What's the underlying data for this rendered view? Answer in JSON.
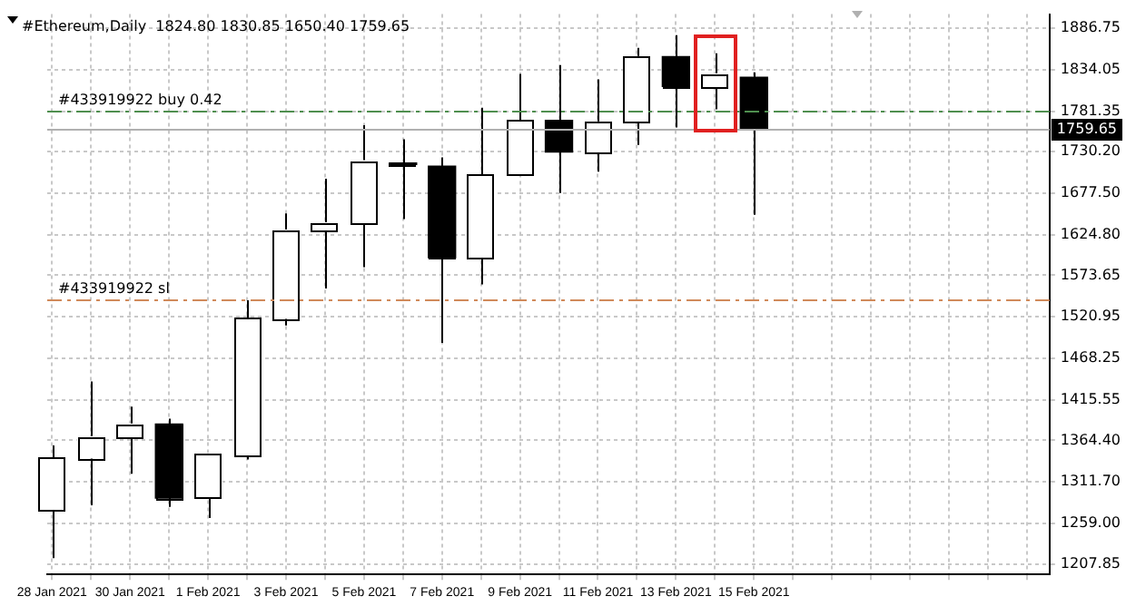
{
  "chart_data": {
    "type": "candlestick",
    "title": "#Ethereum,Daily  1824.80 1830.85 1650.40 1759.65",
    "x": [
      "2021-01-28",
      "2021-01-29",
      "2021-01-30",
      "2021-01-31",
      "2021-02-01",
      "2021-02-02",
      "2021-02-03",
      "2021-02-04",
      "2021-02-05",
      "2021-02-06",
      "2021-02-07",
      "2021-02-08",
      "2021-02-09",
      "2021-02-10",
      "2021-02-11",
      "2021-02-12",
      "2021-02-13",
      "2021-02-14",
      "2021-02-15"
    ],
    "ohlc": [
      [
        1275,
        1358,
        1215,
        1342
      ],
      [
        1342,
        1439,
        1282,
        1369
      ],
      [
        1369,
        1407,
        1322,
        1385
      ],
      [
        1385,
        1392,
        1280,
        1291
      ],
      [
        1291,
        1347,
        1266,
        1347
      ],
      [
        1345,
        1542,
        1340,
        1519
      ],
      [
        1519,
        1652,
        1510,
        1631
      ],
      [
        1631,
        1696,
        1557,
        1640
      ],
      [
        1640,
        1764,
        1584,
        1719
      ],
      [
        1716,
        1746,
        1645,
        1714
      ],
      [
        1712,
        1723,
        1488,
        1596
      ],
      [
        1596,
        1786,
        1562,
        1701
      ],
      [
        1701,
        1829,
        1701,
        1770
      ],
      [
        1770,
        1840,
        1678,
        1730
      ],
      [
        1730,
        1822,
        1705,
        1768
      ],
      [
        1768,
        1862,
        1739,
        1851
      ],
      [
        1851,
        1878,
        1761,
        1813
      ],
      [
        1813,
        1855,
        1784,
        1829
      ],
      [
        1824.8,
        1830.85,
        1650.4,
        1759.65
      ]
    ],
    "colors": [
      "#ffffff",
      "#ffffff",
      "#ffffff",
      "#000000",
      "#ffffff",
      "#ffffff",
      "#ffffff",
      "#ffffff",
      "#ffffff",
      "#000000",
      "#000000",
      "#ffffff",
      "#ffffff",
      "#000000",
      "#ffffff",
      "#ffffff",
      "#000000",
      "#ffffff",
      "#000000"
    ],
    "xlim": [
      "2021-01-27T21:00",
      "2021-02-22T14:00"
    ],
    "xticks": [
      {
        "value": "2021-01-28",
        "label": "28 Jan 2021"
      },
      {
        "value": "2021-01-29",
        "label": null
      },
      {
        "value": "2021-01-30",
        "label": "30 Jan 2021"
      },
      {
        "value": "2021-01-31",
        "label": null
      },
      {
        "value": "2021-02-01",
        "label": "1 Feb 2021"
      },
      {
        "value": "2021-02-02",
        "label": null
      },
      {
        "value": "2021-02-03",
        "label": "3 Feb 2021"
      },
      {
        "value": "2021-02-04",
        "label": null
      },
      {
        "value": "2021-02-05",
        "label": "5 Feb 2021"
      },
      {
        "value": "2021-02-06",
        "label": null
      },
      {
        "value": "2021-02-07",
        "label": "7 Feb 2021"
      },
      {
        "value": "2021-02-08",
        "label": null
      },
      {
        "value": "2021-02-09",
        "label": "9 Feb 2021"
      },
      {
        "value": "2021-02-10",
        "label": null
      },
      {
        "value": "2021-02-11",
        "label": "11 Feb 2021"
      },
      {
        "value": "2021-02-12",
        "label": null
      },
      {
        "value": "2021-02-13",
        "label": "13 Feb 2021"
      },
      {
        "value": "2021-02-14",
        "label": null
      },
      {
        "value": "2021-02-15",
        "label": "15 Feb 2021"
      },
      {
        "value": "2021-02-16",
        "label": null
      },
      {
        "value": "2021-02-17",
        "label": null
      },
      {
        "value": "2021-02-18",
        "label": null
      },
      {
        "value": "2021-02-19",
        "label": null
      },
      {
        "value": "2021-02-20",
        "label": null
      },
      {
        "value": "2021-02-21",
        "label": null
      },
      {
        "value": "2021-02-22",
        "label": null
      }
    ],
    "ylim": [
      1194.4,
      1904.7
    ],
    "yticks": [
      1207.85,
      {
        "value": 1259,
        "label": "1259.00"
      },
      {
        "value": 1311.7,
        "label": "1311.70"
      },
      {
        "value": 1364.4,
        "label": "1364.40"
      },
      1415.55,
      1468.25,
      1520.95,
      1573.65,
      {
        "value": 1624.8,
        "label": "1624.80"
      },
      {
        "value": 1677.5,
        "label": "1677.50"
      },
      {
        "value": 1730.2,
        "label": "1730.20"
      },
      1781.35,
      1834.05,
      1886.75
    ],
    "grid": true,
    "ref_lines": [
      {
        "axis": "y",
        "value": 1783,
        "label": "#433919922 buy 0.42",
        "color": "#4f8f4f",
        "line_style": "dashed"
      },
      {
        "axis": "y",
        "value": 1542,
        "label": "#433919922 sl",
        "color": "#d08a5a",
        "line_style": "dashed"
      },
      {
        "axis": "y",
        "value": 1759.65,
        "label": "1759.65",
        "color": "#b0b0b0",
        "line_style": "solid"
      }
    ]
  }
}
